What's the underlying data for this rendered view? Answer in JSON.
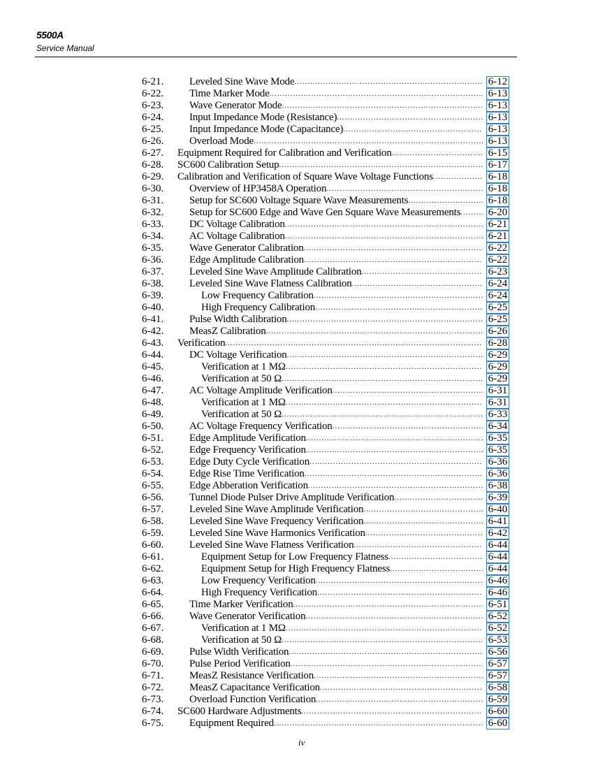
{
  "header": {
    "title": "5500A",
    "subtitle": "Service Manual"
  },
  "footer": {
    "page_number": "iv"
  },
  "colors": {
    "link_box": "#2f7fd6"
  },
  "toc": [
    {
      "num": "6-21.",
      "label": "Leveled Sine Wave Mode",
      "page": "6-12",
      "level": 1
    },
    {
      "num": "6-22.",
      "label": "Time Marker Mode",
      "page": "6-13",
      "level": 1
    },
    {
      "num": "6-23.",
      "label": "Wave Generator Mode",
      "page": "6-13",
      "level": 1
    },
    {
      "num": "6-24.",
      "label": "Input Impedance Mode (Resistance)",
      "page": "6-13",
      "level": 1
    },
    {
      "num": "6-25.",
      "label": "Input Impedance Mode (Capacitance)",
      "page": "6-13",
      "level": 1
    },
    {
      "num": "6-26.",
      "label": "Overload Mode",
      "page": "6-13",
      "level": 1
    },
    {
      "num": "6-27.",
      "label": "Equipment Required for Calibration and Verification",
      "page": "6-15",
      "level": 0
    },
    {
      "num": "6-28.",
      "label": "SC600 Calibration Setup",
      "page": "6-17",
      "level": 0
    },
    {
      "num": "6-29.",
      "label": "Calibration and Verification of Square Wave Voltage Functions",
      "page": "6-18",
      "level": 0
    },
    {
      "num": "6-30.",
      "label": "Overview of HP3458A Operation",
      "page": "6-18",
      "level": 1
    },
    {
      "num": "6-31.",
      "label": "Setup for SC600 Voltage Square Wave Measurements",
      "page": "6-18",
      "level": 1
    },
    {
      "num": "6-32.",
      "label": "Setup for SC600 Edge and Wave Gen Square Wave Measurements",
      "page": "6-20",
      "level": 1
    },
    {
      "num": "6-33.",
      "label": "DC Voltage Calibration",
      "page": "6-21",
      "level": 1
    },
    {
      "num": "6-34.",
      "label": "AC Voltage Calibration",
      "page": "6-21",
      "level": 1
    },
    {
      "num": "6-35.",
      "label": "Wave Generator Calibration",
      "page": "6-22",
      "level": 1
    },
    {
      "num": "6-36.",
      "label": "Edge Amplitude Calibration",
      "page": "6-22",
      "level": 1
    },
    {
      "num": "6-37.",
      "label": "Leveled Sine Wave Amplitude Calibration",
      "page": "6-23",
      "level": 1
    },
    {
      "num": "6-38.",
      "label": "Leveled Sine Wave Flatness Calibration",
      "page": "6-24",
      "level": 1
    },
    {
      "num": "6-39.",
      "label": "Low Frequency Calibration",
      "page": "6-24",
      "level": 2
    },
    {
      "num": "6-40.",
      "label": "High Frequency Calibration",
      "page": "6-25",
      "level": 2
    },
    {
      "num": "6-41.",
      "label": "Pulse Width Calibration",
      "page": "6-25",
      "level": 1
    },
    {
      "num": "6-42.",
      "label": "MeasZ Calibration",
      "page": "6-26",
      "level": 1
    },
    {
      "num": "6-43.",
      "label": "Verification",
      "page": "6-28",
      "level": 0
    },
    {
      "num": "6-44.",
      "label": "DC Voltage Verification",
      "page": "6-29",
      "level": 1
    },
    {
      "num": "6-45.",
      "label": "Verification at 1 MΩ",
      "page": "6-29",
      "level": 2
    },
    {
      "num": "6-46.",
      "label": "Verification at 50 Ω",
      "page": "6-29",
      "level": 2
    },
    {
      "num": "6-47.",
      "label": "AC Voltage Amplitude Verification",
      "page": "6-31",
      "level": 1
    },
    {
      "num": "6-48.",
      "label": "Verification at 1 MΩ",
      "page": "6-31",
      "level": 2
    },
    {
      "num": "6-49.",
      "label": "Verification at 50 Ω",
      "page": "6-33",
      "level": 2
    },
    {
      "num": "6-50.",
      "label": "AC Voltage Frequency Verification",
      "page": "6-34",
      "level": 1
    },
    {
      "num": "6-51.",
      "label": "Edge Amplitude Verification",
      "page": "6-35",
      "level": 1
    },
    {
      "num": "6-52.",
      "label": "Edge Frequency Verification",
      "page": "6-35",
      "level": 1
    },
    {
      "num": "6-53.",
      "label": "Edge Duty Cycle Verification",
      "page": "6-36",
      "level": 1
    },
    {
      "num": "6-54.",
      "label": "Edge Rise Time Verification",
      "page": "6-36",
      "level": 1
    },
    {
      "num": "6-55.",
      "label": "Edge Abberation Verification",
      "page": "6-38",
      "level": 1
    },
    {
      "num": "6-56.",
      "label": "Tunnel Diode Pulser Drive Amplitude Verification",
      "page": "6-39",
      "level": 1
    },
    {
      "num": "6-57.",
      "label": "Leveled Sine Wave Amplitude Verification",
      "page": "6-40",
      "level": 1
    },
    {
      "num": "6-58.",
      "label": "Leveled Sine Wave Frequency Verification",
      "page": "6-41",
      "level": 1
    },
    {
      "num": "6-59.",
      "label": "Leveled Sine Wave Harmonics Verification",
      "page": "6-42",
      "level": 1
    },
    {
      "num": "6-60.",
      "label": "Leveled Sine Wave Flatness Verification",
      "page": "6-44",
      "level": 1
    },
    {
      "num": "6-61.",
      "label": "Equipment Setup for Low Frequency Flatness",
      "page": "6-44",
      "level": 2
    },
    {
      "num": "6-62.",
      "label": "Equipment Setup for High Frequency Flatness",
      "page": "6-44",
      "level": 2
    },
    {
      "num": "6-63.",
      "label": "Low Frequency Verification",
      "page": "6-46",
      "level": 2
    },
    {
      "num": "6-64.",
      "label": "High Frequency Verification",
      "page": "6-46",
      "level": 2
    },
    {
      "num": "6-65.",
      "label": "Time Marker Verification",
      "page": "6-51",
      "level": 1
    },
    {
      "num": "6-66.",
      "label": "Wave Generator Verification",
      "page": "6-52",
      "level": 1
    },
    {
      "num": "6-67.",
      "label": "Verification at 1 MΩ",
      "page": "6-52",
      "level": 2
    },
    {
      "num": "6-68.",
      "label": "Verification at 50 Ω",
      "page": "6-53",
      "level": 2
    },
    {
      "num": "6-69.",
      "label": "Pulse Width Verification",
      "page": "6-56",
      "level": 1
    },
    {
      "num": "6-70.",
      "label": "Pulse Period Verification",
      "page": "6-57",
      "level": 1
    },
    {
      "num": "6-71.",
      "label": "MeasZ Resistance Verification",
      "page": "6-57",
      "level": 1
    },
    {
      "num": "6-72.",
      "label": "MeasZ Capacitance Verification",
      "page": "6-58",
      "level": 1
    },
    {
      "num": "6-73.",
      "label": "Overload Function Verification",
      "page": "6-59",
      "level": 1
    },
    {
      "num": "6-74.",
      "label": "SC600 Hardware Adjustments",
      "page": "6-60",
      "level": 0
    },
    {
      "num": "6-75.",
      "label": "Equipment Required",
      "page": "6-60",
      "level": 1
    }
  ]
}
